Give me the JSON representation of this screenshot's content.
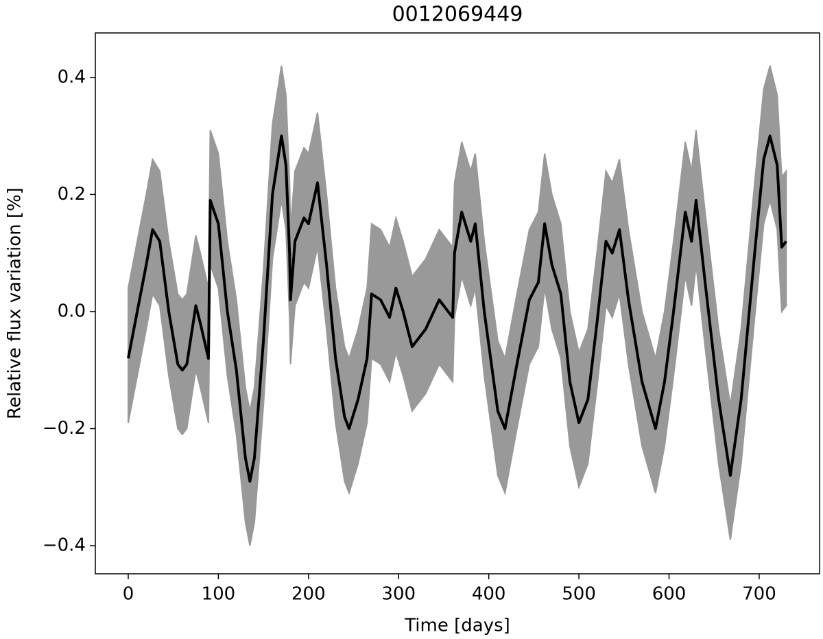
{
  "chart_data": {
    "type": "line",
    "title": "0012069449",
    "xlabel": "Time [days]",
    "ylabel": "Relative flux variation [%]",
    "x": [
      0,
      10,
      20,
      27,
      35,
      45,
      55,
      60,
      65,
      75,
      80,
      89,
      91,
      100,
      110,
      120,
      130,
      135,
      140,
      150,
      160,
      170,
      175,
      179,
      180,
      185,
      195,
      200,
      210,
      220,
      230,
      240,
      245,
      255,
      265,
      270,
      280,
      290,
      297,
      305,
      315,
      330,
      345,
      360,
      362,
      370,
      380,
      385,
      395,
      410,
      418,
      430,
      445,
      455,
      462,
      470,
      480,
      490,
      500,
      510,
      520,
      530,
      537,
      545,
      555,
      570,
      585,
      595,
      605,
      618,
      625,
      630,
      640,
      655,
      668,
      680,
      695,
      705,
      712,
      720,
      725,
      730
    ],
    "series": [
      {
        "color": "#999999",
        "upper": [
          0.04,
          0.12,
          0.2,
          0.26,
          0.24,
          0.12,
          0.03,
          0.02,
          0.03,
          0.13,
          0.1,
          0.04,
          0.31,
          0.27,
          0.12,
          0.02,
          -0.13,
          -0.17,
          -0.13,
          0.07,
          0.32,
          0.42,
          0.37,
          0.22,
          0.14,
          0.24,
          0.28,
          0.27,
          0.34,
          0.2,
          0.04,
          -0.06,
          -0.08,
          -0.03,
          0.04,
          0.15,
          0.14,
          0.11,
          0.16,
          0.12,
          0.06,
          0.09,
          0.14,
          0.11,
          0.22,
          0.29,
          0.24,
          0.27,
          0.12,
          -0.05,
          -0.08,
          0.02,
          0.14,
          0.17,
          0.27,
          0.2,
          0.15,
          0.0,
          -0.07,
          -0.03,
          0.1,
          0.24,
          0.22,
          0.26,
          0.14,
          0.0,
          -0.08,
          0.0,
          0.12,
          0.29,
          0.24,
          0.31,
          0.17,
          -0.03,
          -0.16,
          -0.03,
          0.22,
          0.38,
          0.42,
          0.37,
          0.23,
          0.24
        ],
        "lower": [
          -0.19,
          -0.11,
          -0.03,
          0.03,
          0.01,
          -0.11,
          -0.2,
          -0.21,
          -0.2,
          -0.1,
          -0.13,
          -0.19,
          0.08,
          0.04,
          -0.11,
          -0.21,
          -0.36,
          -0.4,
          -0.36,
          -0.16,
          0.09,
          0.19,
          0.14,
          -0.01,
          -0.09,
          0.01,
          0.05,
          0.04,
          0.11,
          -0.03,
          -0.19,
          -0.29,
          -0.31,
          -0.26,
          -0.19,
          -0.08,
          -0.09,
          -0.12,
          -0.07,
          -0.11,
          -0.17,
          -0.14,
          -0.09,
          -0.12,
          -0.01,
          0.06,
          0.01,
          0.04,
          -0.11,
          -0.28,
          -0.31,
          -0.21,
          -0.09,
          -0.06,
          0.04,
          -0.03,
          -0.08,
          -0.23,
          -0.3,
          -0.26,
          -0.13,
          0.01,
          -0.01,
          0.03,
          -0.09,
          -0.23,
          -0.31,
          -0.23,
          -0.11,
          0.06,
          0.01,
          0.08,
          -0.06,
          -0.26,
          -0.39,
          -0.26,
          -0.01,
          0.15,
          0.19,
          0.14,
          0.0,
          0.01
        ]
      },
      {
        "color": "#000000",
        "values": [
          -0.08,
          0.0,
          0.08,
          0.14,
          0.12,
          0.0,
          -0.09,
          -0.1,
          -0.09,
          0.01,
          -0.02,
          -0.08,
          0.19,
          0.15,
          0.0,
          -0.1,
          -0.25,
          -0.29,
          -0.25,
          -0.05,
          0.2,
          0.3,
          0.25,
          0.1,
          0.02,
          0.12,
          0.16,
          0.15,
          0.22,
          0.08,
          -0.08,
          -0.18,
          -0.2,
          -0.15,
          -0.08,
          0.03,
          0.02,
          -0.01,
          0.04,
          0.0,
          -0.06,
          -0.03,
          0.02,
          -0.01,
          0.1,
          0.17,
          0.12,
          0.15,
          0.0,
          -0.17,
          -0.2,
          -0.1,
          0.02,
          0.05,
          0.15,
          0.08,
          0.03,
          -0.12,
          -0.19,
          -0.15,
          -0.02,
          0.12,
          0.1,
          0.14,
          0.02,
          -0.12,
          -0.2,
          -0.12,
          0.0,
          0.17,
          0.12,
          0.19,
          0.05,
          -0.15,
          -0.28,
          -0.15,
          0.1,
          0.26,
          0.3,
          0.25,
          0.11,
          0.12
        ]
      }
    ],
    "xlim": [
      -36.5,
      767
    ],
    "ylim": [
      -0.448,
      0.476
    ],
    "xticks": [
      0,
      100,
      200,
      300,
      400,
      500,
      600,
      700
    ],
    "yticks": [
      {
        "value": -0.4,
        "label": "−0.4"
      },
      {
        "value": -0.2,
        "label": "−0.2"
      },
      {
        "value": 0,
        "label": "0.0"
      },
      0.2,
      0.4
    ]
  }
}
